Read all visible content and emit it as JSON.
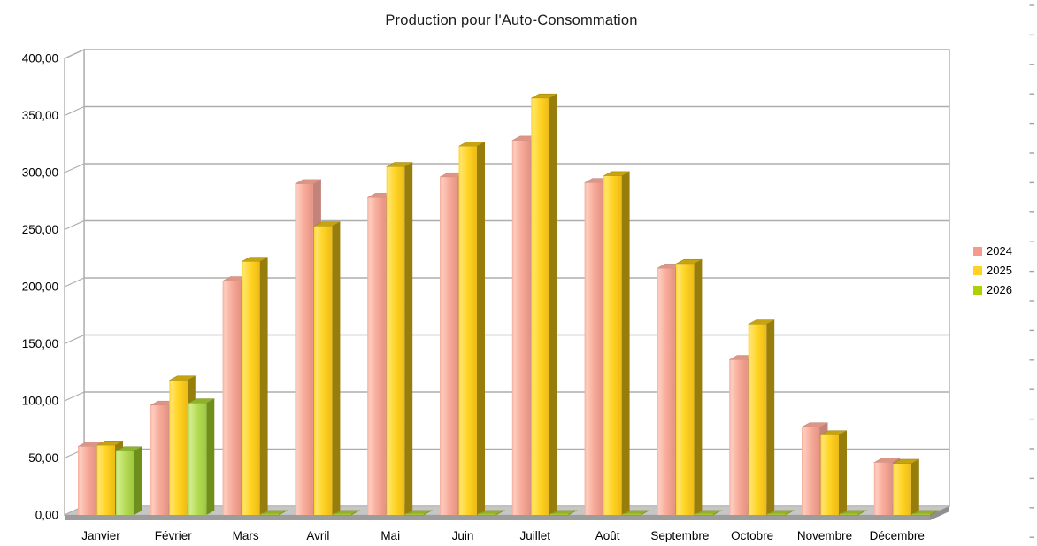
{
  "title": "Production pour l'Auto-Consommation",
  "legend": {
    "position": "right",
    "entries": [
      {
        "label": "2024",
        "color": "#F7998B"
      },
      {
        "label": "2025",
        "color": "#FFD320"
      },
      {
        "label": "2026",
        "color": "#AECF00"
      }
    ]
  },
  "chart_data": {
    "type": "bar",
    "projection": "3d",
    "title": "Production pour l'Auto-Consommation",
    "categories": [
      "Janvier",
      "Février",
      "Mars",
      "Avril",
      "Mai",
      "Juin",
      "Juillet",
      "Août",
      "Septembre",
      "Octobre",
      "Novembre",
      "Décembre"
    ],
    "series": [
      {
        "name": "2024",
        "color": "#F7998B",
        "values": [
          60,
          96,
          205,
          290,
          278,
          296,
          328,
          291,
          216,
          136,
          77,
          46
        ]
      },
      {
        "name": "2025",
        "color": "#FFD320",
        "values": [
          61,
          118,
          222,
          253,
          305,
          323,
          365,
          297,
          220,
          167,
          70,
          45
        ]
      },
      {
        "name": "2026",
        "color": "#AECF00",
        "values": [
          56,
          98,
          0,
          0,
          0,
          0,
          0,
          0,
          0,
          0,
          0,
          0
        ]
      }
    ],
    "xlabel": "",
    "ylabel": "",
    "ylim": [
      0,
      400
    ],
    "y_tick_step": 50,
    "y_tick_labels": [
      "0,00",
      "50,00",
      "100,00",
      "150,00",
      "200,00",
      "250,00",
      "300,00",
      "350,00",
      "400,00"
    ],
    "grid": true,
    "legend_position": "right",
    "wall_color": "#ffffff",
    "grid_color": "#ADADAD",
    "floor_top_color": "#C6C6C6",
    "floor_front_color": "#9C9C9C",
    "floor_side_color": "#8F8F8F",
    "series_shades": [
      {
        "light": "#FDCDBF",
        "face": "#F8AC9B",
        "faceDark": "#E59282",
        "top": "#DD9586",
        "side": "#C2837B"
      },
      {
        "light": "#FFE46B",
        "face": "#FFD323",
        "faceDark": "#ECBB16",
        "top": "#C5A311",
        "side": "#977D0C"
      },
      {
        "light": "#D2EC8C",
        "face": "#B5DC57",
        "faceDark": "#9FC73E",
        "top": "#8FB12C",
        "side": "#6F8F1D"
      }
    ],
    "pancake": {
      "top": "#94B026",
      "edge": "#7A9418",
      "front": "#A5C335"
    }
  },
  "sheet_edge": {
    "mark_color": "#808080"
  }
}
